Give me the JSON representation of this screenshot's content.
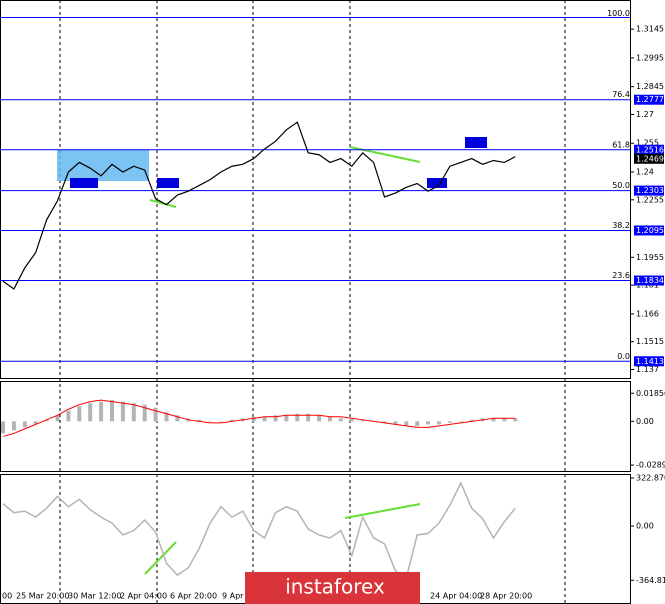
{
  "chart_data": [
    {
      "type": "line",
      "color": "#000000",
      "values": [
        1.183,
        1.179,
        1.19,
        1.198,
        1.215,
        1.225,
        1.24,
        1.245,
        1.242,
        1.238,
        1.244,
        1.24,
        1.243,
        1.241,
        1.226,
        1.223,
        1.228,
        1.23,
        1.233,
        1.236,
        1.24,
        1.243,
        1.244,
        1.247,
        1.252,
        1.256,
        1.262,
        1.266,
        1.25,
        1.249,
        1.245,
        1.247,
        1.243,
        1.25,
        1.245,
        1.227,
        1.229,
        1.232,
        1.234,
        1.23,
        1.233,
        1.243,
        1.245,
        1.247,
        1.244,
        1.246,
        1.245,
        1.248
      ],
      "ylim": [
        1.131,
        1.3297
      ],
      "yticks": [
        1.3145,
        1.2995,
        1.2845,
        1.27,
        1.255,
        1.24,
        1.2255,
        1.1955,
        1.181,
        1.166,
        1.1515,
        1.137
      ],
      "fib_top": {
        "level": "100.0",
        "value": 1.3206
      },
      "fib_levels": [
        {
          "level": "76.4",
          "value": 1.2777
        },
        {
          "level": "61.8",
          "value": 1.2516
        },
        {
          "level": "50.0",
          "value": 1.2303
        },
        {
          "level": "38.2",
          "value": 1.2095
        },
        {
          "level": "23.6",
          "value": 1.1834
        },
        {
          "level": "0.0",
          "value": 1.1413
        }
      ],
      "fib_color": "#0000ff",
      "current_price": 1.2469,
      "time_labels": [
        "00",
        "25 Mar 20:00",
        "30 Mar 12:00",
        "2 Apr 04:00",
        "6 Apr 20:00",
        "9 Apr",
        "24 Apr 04:00",
        "28 Apr 20:00"
      ]
    },
    {
      "type": "macd",
      "color": "#b4b4b4",
      "signal_color": "#ff0000",
      "values": [
        -0.008,
        -0.006,
        -0.004,
        -0.002,
        0.001,
        0.004,
        0.007,
        0.01,
        0.012,
        0.013,
        0.014,
        0.013,
        0.012,
        0.011,
        0.009,
        0.006,
        0.004,
        0.002,
        0.001,
        0.0,
        0.0,
        0.001,
        0.002,
        0.003,
        0.003,
        0.004,
        0.004,
        0.005,
        0.005,
        0.004,
        0.003,
        0.002,
        0.002,
        0.001,
        0.0,
        -0.001,
        -0.002,
        -0.003,
        -0.003,
        -0.002,
        -0.002,
        -0.001,
        0.0,
        0.001,
        0.002,
        0.002,
        0.002,
        0.002
      ],
      "signal": [
        -0.01,
        -0.008,
        -0.005,
        -0.002,
        0.001,
        0.004,
        0.008,
        0.011,
        0.013,
        0.014,
        0.013,
        0.012,
        0.011,
        0.009,
        0.007,
        0.005,
        0.003,
        0.001,
        0.0,
        -0.001,
        -0.001,
        0.0,
        0.001,
        0.002,
        0.003,
        0.003,
        0.004,
        0.004,
        0.004,
        0.004,
        0.003,
        0.003,
        0.002,
        0.001,
        0.0,
        -0.001,
        -0.002,
        -0.003,
        -0.004,
        -0.004,
        -0.003,
        -0.002,
        -0.001,
        0.0,
        0.001,
        0.002,
        0.002,
        0.002
      ],
      "ylim": [
        -0.0335,
        0.026
      ],
      "yticks": [
        0.01856,
        {
          "value": 0,
          "label": "0.00"
        },
        -0.02892
      ]
    },
    {
      "type": "line",
      "color": "#b4b4b4",
      "values": [
        150,
        90,
        100,
        60,
        120,
        200,
        130,
        180,
        110,
        60,
        20,
        -60,
        -30,
        40,
        -40,
        -250,
        -330,
        -280,
        -150,
        20,
        130,
        60,
        100,
        -30,
        -80,
        90,
        130,
        100,
        -20,
        -60,
        -80,
        -30,
        -200,
        60,
        -80,
        -120,
        -300,
        -350,
        -60,
        -50,
        20,
        140,
        290,
        120,
        50,
        -80,
        30,
        120
      ],
      "ylim": [
        -430,
        350
      ],
      "yticks": [
        322.8702,
        {
          "value": 0,
          "label": "0.00"
        },
        -364.8155
      ]
    }
  ],
  "watermark": "instaforex"
}
